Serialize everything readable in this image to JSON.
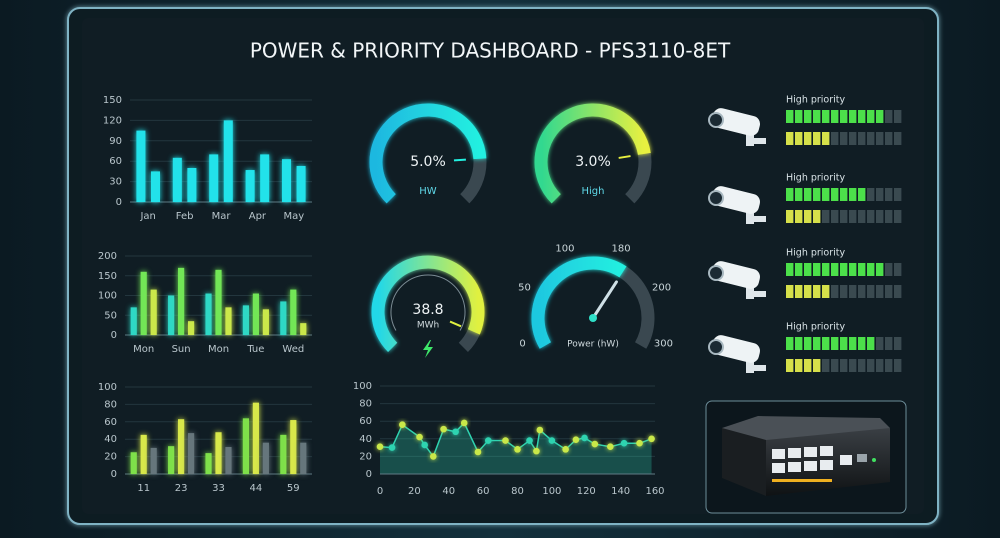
{
  "title": "POWER & PRIORITY DASHBOARD - PFS3110-8ET",
  "chart_data": [
    {
      "type": "bar",
      "categories": [
        "Jan",
        "Feb",
        "Mar",
        "Apr",
        "May"
      ],
      "series": [
        {
          "color": "#22e2ea",
          "values": [
            105,
            65,
            70,
            47,
            63
          ]
        },
        {
          "color": "#22e2ea",
          "values": [
            45,
            50,
            120,
            70,
            53
          ]
        }
      ],
      "ylim": [
        0,
        150
      ],
      "yticks": [
        0,
        30,
        60,
        90,
        120,
        150
      ],
      "grid": true
    },
    {
      "type": "bar",
      "categories": [
        "Mon",
        "Sun",
        "Mon",
        "Tue",
        "Wed"
      ],
      "series": [
        {
          "color": "#2ed8c6",
          "values": [
            70,
            100,
            105,
            75,
            85
          ]
        },
        {
          "color": "#72e656",
          "values": [
            160,
            170,
            165,
            105,
            115
          ]
        },
        {
          "color": "#cbe84a",
          "values": [
            115,
            35,
            70,
            65,
            30
          ]
        }
      ],
      "ylim": [
        0,
        200
      ],
      "yticks": [
        0,
        50,
        100,
        150,
        200
      ],
      "grid": true
    },
    {
      "type": "bar",
      "categories": [
        "11",
        "23",
        "33",
        "44",
        "59"
      ],
      "series": [
        {
          "color": "#7ee04a",
          "values": [
            25,
            32,
            24,
            64,
            45
          ]
        },
        {
          "color": "#d8e84a",
          "values": [
            45,
            63,
            48,
            82,
            62
          ]
        },
        {
          "color": "#66767c",
          "values": [
            30,
            47,
            31,
            36,
            36
          ]
        }
      ],
      "ylim": [
        0,
        100
      ],
      "yticks": [
        0,
        20,
        40,
        60,
        80,
        100
      ],
      "grid": true
    },
    {
      "type": "gauge",
      "values": [
        5
      ],
      "value_labels": [
        "5.0%"
      ],
      "label": "HW",
      "colors": [
        "#1fb8e0",
        "#22f0e0"
      ]
    },
    {
      "type": "gauge",
      "values": [
        3
      ],
      "value_labels": [
        "3.0%"
      ],
      "label": "High",
      "colors": [
        "#30d890",
        "#e8f040"
      ]
    },
    {
      "type": "gauge",
      "values": [
        38.8
      ],
      "label": "MWh",
      "colors": [
        "#22d8e8",
        "#e0f040"
      ]
    },
    {
      "type": "dial",
      "values": [
        185
      ],
      "label": "Power (hW)",
      "xticks": [
        0,
        50,
        100,
        180,
        200,
        300
      ],
      "colors": [
        "#1fc8e0",
        "#22f0e0"
      ]
    },
    {
      "type": "area",
      "x": [
        0,
        7,
        13,
        23,
        26,
        31,
        37,
        44,
        49,
        57,
        63,
        73,
        80,
        87,
        91,
        93,
        100,
        108,
        114,
        119,
        125,
        134,
        142,
        151,
        158
      ],
      "values": [
        31,
        30,
        56,
        42,
        33,
        20,
        51,
        48,
        58,
        25,
        38,
        38,
        28,
        38,
        26,
        50,
        38,
        28,
        39,
        41,
        34,
        31,
        35,
        35,
        40
      ],
      "color": "#2fd3b0",
      "marker_color": "#c9e84a",
      "xlim": [
        0,
        160
      ],
      "xticks": [
        0,
        20,
        40,
        60,
        80,
        100,
        120,
        140,
        160
      ],
      "ylim": [
        0,
        100
      ],
      "yticks": [
        0,
        20,
        40,
        60,
        80,
        100
      ],
      "grid": true
    }
  ],
  "cameras": [
    {
      "label": "High priority",
      "levels": [
        11,
        5
      ]
    },
    {
      "label": "High priority",
      "levels": [
        9,
        4
      ]
    },
    {
      "label": "High priority",
      "levels": [
        11,
        5
      ]
    },
    {
      "label": "High priority",
      "levels": [
        10,
        4
      ]
    }
  ]
}
